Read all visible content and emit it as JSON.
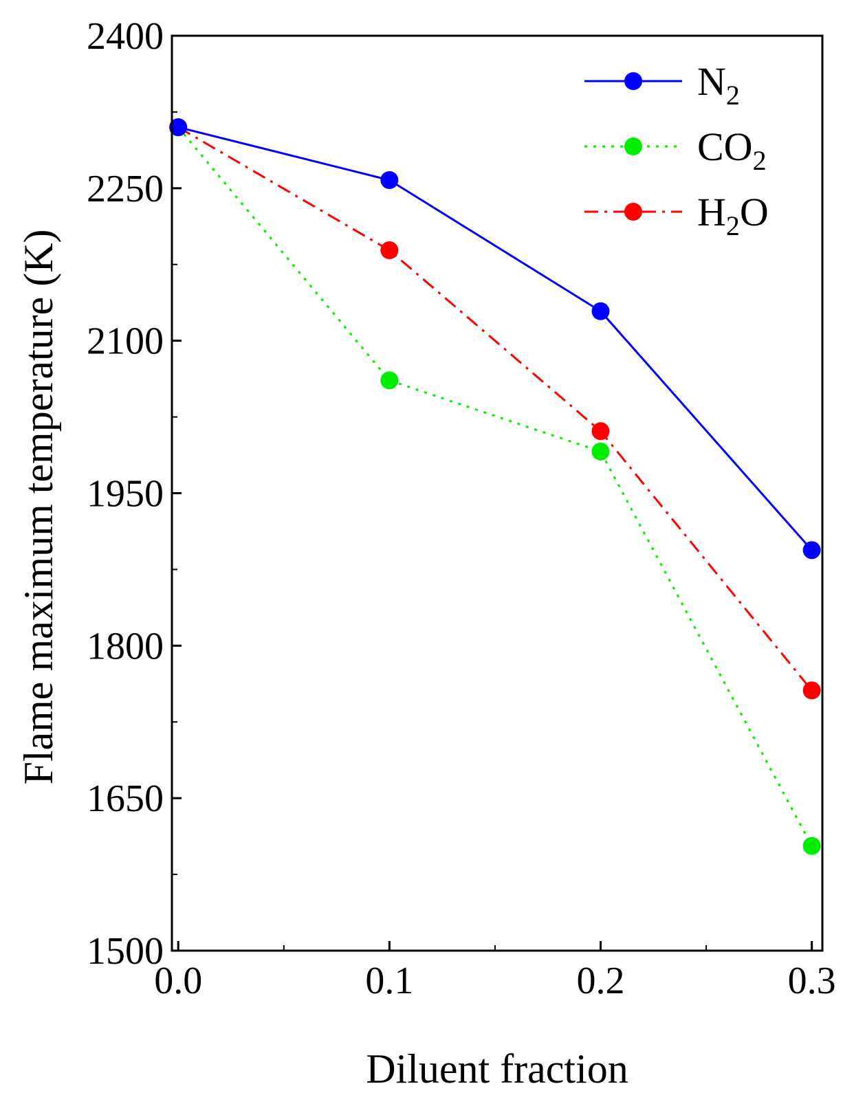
{
  "chart_data": {
    "type": "line",
    "title": "",
    "xlabel": "Diluent fraction",
    "ylabel": "Flame maximum temperature (K)",
    "xlim": [
      -0.003,
      0.305
    ],
    "ylim": [
      1500,
      2400
    ],
    "x": [
      0.0,
      0.1,
      0.2,
      0.3
    ],
    "x_ticks": [
      0.0,
      0.1,
      0.2,
      0.3
    ],
    "x_tick_labels": [
      "0.0",
      "0.1",
      "0.2",
      "0.3"
    ],
    "x_minor_ticks": [
      0.05,
      0.15,
      0.25
    ],
    "y_ticks": [
      1500,
      1650,
      1800,
      1950,
      2100,
      2250,
      2400
    ],
    "y_tick_labels": [
      "1500",
      "1650",
      "1800",
      "1950",
      "2100",
      "2250",
      "2400"
    ],
    "y_minor_ticks": [
      1575,
      1725,
      1875,
      2025,
      2175,
      2325
    ],
    "grid": false,
    "legend_position": "top-right",
    "series": [
      {
        "name": "N2",
        "label_main": "N",
        "label_sub": "2",
        "label_tail": "",
        "color": "#0000ff",
        "line_style": "solid",
        "values": [
          2310,
          2258,
          2129,
          1894
        ]
      },
      {
        "name": "CO2",
        "label_main": "CO",
        "label_sub": "2",
        "label_tail": "",
        "color": "#00ee00",
        "line_style": "dotted",
        "values": [
          2310,
          2061,
          1991,
          1603
        ]
      },
      {
        "name": "H2O",
        "label_main": "H",
        "label_sub": "2",
        "label_tail": "O",
        "color": "#ff0000",
        "line_style": "dash-dot",
        "values": [
          2310,
          2189,
          2011,
          1756
        ]
      }
    ]
  }
}
